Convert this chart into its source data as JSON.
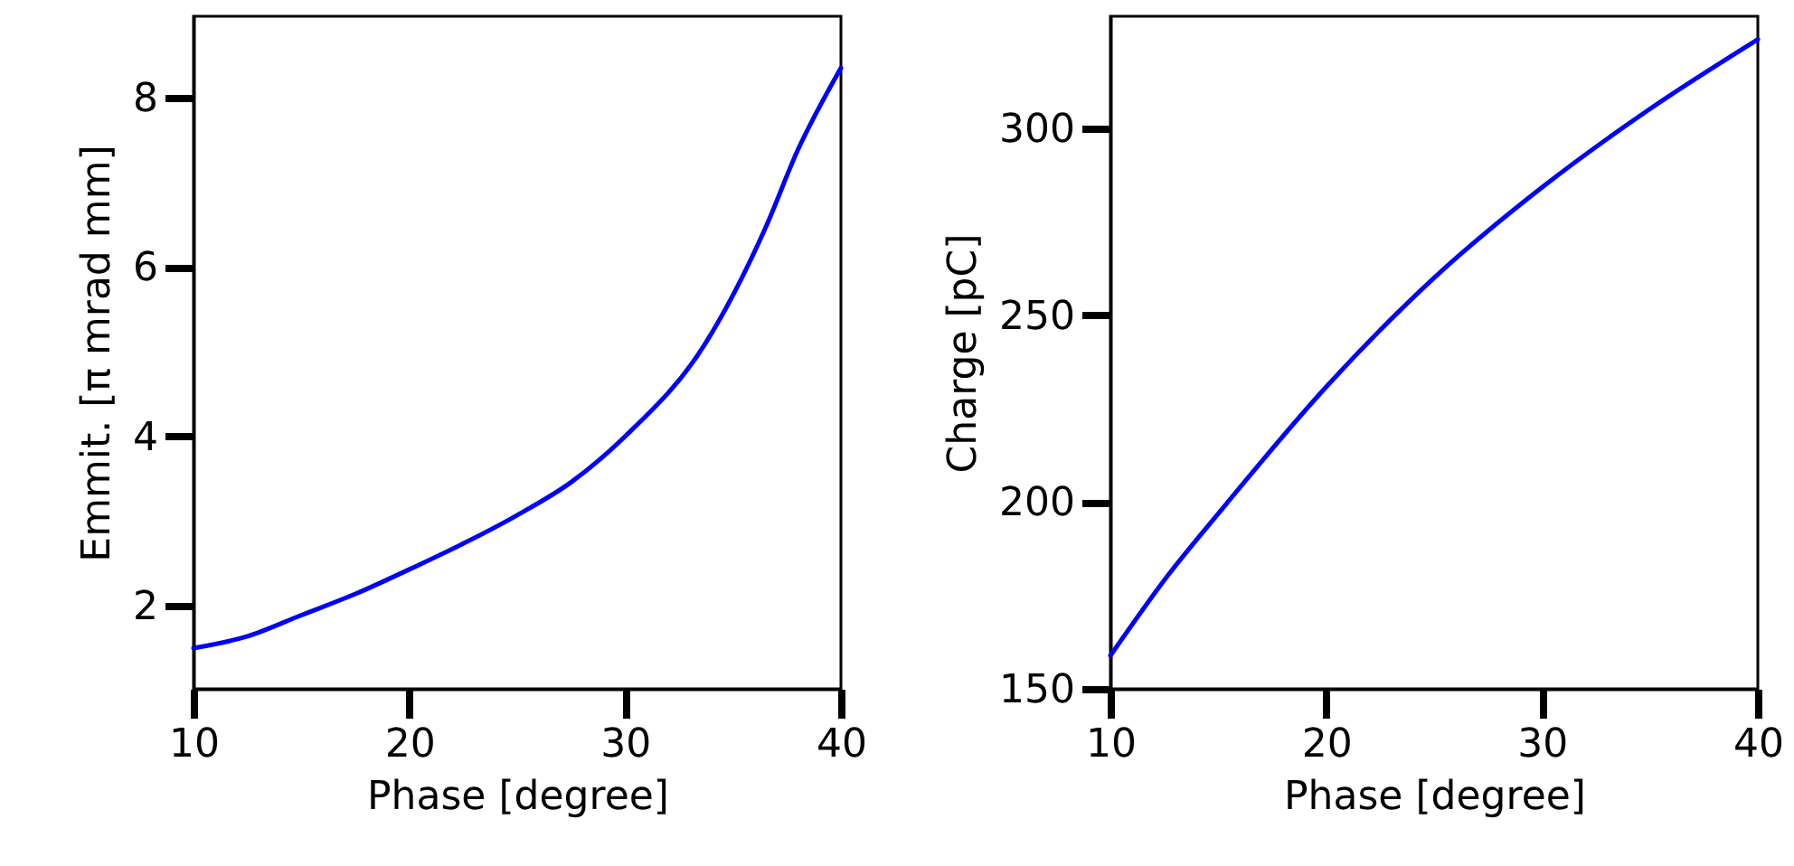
{
  "chart_data": [
    {
      "type": "line",
      "xlabel": "Phase [degree]",
      "ylabel": "Emmit. [π mrad mm]",
      "xlim": [
        10,
        40
      ],
      "ylim": [
        1.02,
        8.96
      ],
      "xticks": [
        10,
        20,
        30,
        40
      ],
      "yticks": [
        2,
        4,
        6,
        8
      ],
      "x": [
        10,
        12.5,
        15,
        17.5,
        20,
        25,
        27.5,
        30,
        33.7,
        36.5,
        38,
        40
      ],
      "series": [
        {
          "color": "#0000ff",
          "values": [
            1.5,
            1.64,
            1.89,
            2.14,
            2.43,
            3.07,
            3.46,
            4.0,
            5.09,
            6.46,
            7.38,
            8.35
          ]
        }
      ]
    },
    {
      "type": "line",
      "xlabel": "Phase [degree]",
      "ylabel": "Charge [pC]",
      "xlim": [
        10,
        40
      ],
      "ylim": [
        150,
        330
      ],
      "xticks": [
        10,
        20,
        30,
        40
      ],
      "yticks": [
        150,
        200,
        250,
        300
      ],
      "x": [
        10,
        12.5,
        15,
        20,
        25,
        30,
        35,
        40
      ],
      "series": [
        {
          "color": "#0000ff",
          "values": [
            158.9,
            179.1,
            196.9,
            230.8,
            260,
            284.2,
            305.2,
            323.8
          ]
        }
      ]
    }
  ]
}
